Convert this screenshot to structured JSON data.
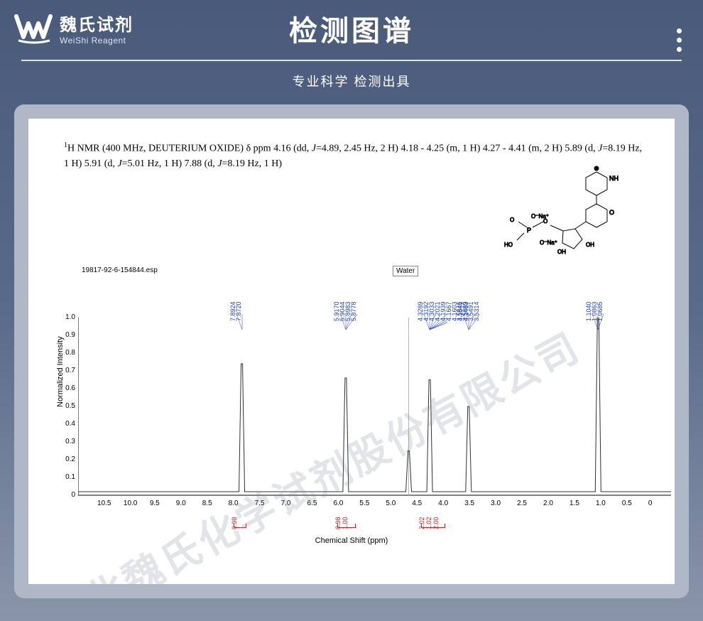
{
  "header": {
    "logo_cn": "魏氏试剂",
    "logo_en": "WeiShi Reagent",
    "title": "检测图谱",
    "subtitle": "专业科学 检测出具"
  },
  "nmr": {
    "description_prefix": "H NMR (400 MHz, DEUTERIUM OXIDE) δ ppm 4.16 (dd, ",
    "description_j1": "J",
    "description_mid1": "=4.89, 2.45 Hz, 2 H) 4.18 - 4.25 (m, 1 H) 4.27 - 4.41 (m, 2 H) 5.89 (d, ",
    "description_j2": "J",
    "description_mid2": "=8.19 Hz, 1 H) 5.91 (d, ",
    "description_j3": "J",
    "description_mid3": "=5.01 Hz, 1 H) 7.88 (d, ",
    "description_j4": "J",
    "description_end": "=8.19 Hz, 1 H)",
    "esp_label": "19817-92-6-154844.esp",
    "water_label": "Water",
    "y_axis_label": "Normalized Intensity",
    "x_axis_label": "Chemical Shift (ppm)"
  },
  "chart": {
    "type": "nmr-spectrum",
    "background_color": "#ffffff",
    "line_color": "#303030",
    "peak_label_color": "#2040c0",
    "integral_color": "#d02020",
    "water_line_color": "#b8c060",
    "y_ticks": [
      "1.0",
      "0.9",
      "0.8",
      "0.7",
      "0.6",
      "0.5",
      "0.4",
      "0.3",
      "0.2",
      "0.1",
      "0"
    ],
    "x_ticks": [
      "10.5",
      "10.0",
      "9.5",
      "9.0",
      "8.5",
      "8.0",
      "7.5",
      "7.0",
      "6.5",
      "6.0",
      "5.5",
      "5.0",
      "4.5",
      "4.0",
      "3.5",
      "3.0",
      "2.5",
      "2.0",
      "1.5",
      "1.0",
      "0.5",
      "0"
    ],
    "xlim": [
      11.0,
      -0.3
    ],
    "ylim": [
      0,
      1.0
    ],
    "peak_groups": [
      {
        "x_ppm": 7.88,
        "labels": [
          "7.8924",
          "7.8720"
        ],
        "height": 0.74
      },
      {
        "x_ppm": 5.9,
        "labels": [
          "5.9170",
          "5.9044",
          "5.8983",
          "5.8778"
        ],
        "height": 0.66
      },
      {
        "x_ppm": 4.3,
        "labels": [
          "4.3289",
          "4.3192",
          "4.3033",
          "4.2021",
          "4.1939",
          "4.1667",
          "4.1603",
          "4.1541",
          "4.1483"
        ],
        "height": 0.65
      },
      {
        "x_ppm": 3.56,
        "labels": [
          "3.5846",
          "3.5669",
          "3.5491",
          "3.5314"
        ],
        "height": 0.5
      },
      {
        "x_ppm": 1.09,
        "labels": [
          "1.1040",
          "1.0863",
          "1.0685"
        ],
        "height": 1.0
      }
    ],
    "integrals": [
      {
        "x_ppm": 7.88,
        "values": [
          "0.98"
        ]
      },
      {
        "x_ppm": 5.9,
        "values": [
          "0.98",
          "1.00"
        ]
      },
      {
        "x_ppm": 4.3,
        "values": [
          "2.02",
          "1.02",
          "2.00"
        ]
      }
    ],
    "water_peak_ppm": 4.7
  },
  "watermark": {
    "text": "湖北魏氏化学试剂股份有限公司"
  },
  "colors": {
    "bg_top": "#4a5a7a",
    "bg_bottom": "#8a95aa",
    "card_bg": "#b0b8c8",
    "text_white": "#ffffff"
  }
}
